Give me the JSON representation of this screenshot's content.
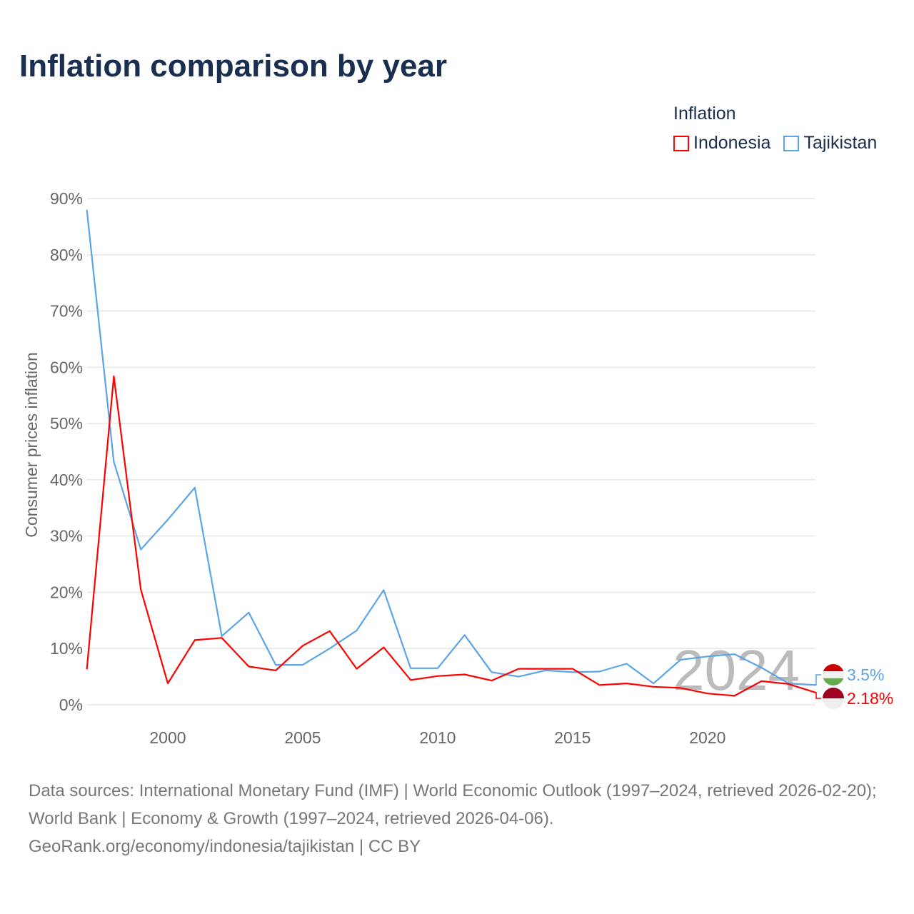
{
  "title": "Inflation comparison by year",
  "legend": {
    "title": "Inflation",
    "items": [
      "Indonesia",
      "Tajikistan"
    ]
  },
  "colors": {
    "Indonesia": "#ff0000",
    "Tajikistan": "#5ba4e8"
  },
  "source_lines": [
    "Data sources: International Monetary Fund (IMF) | World Economic Outlook (1997–2024, retrieved 2026-02-20); World Bank | Economy & Growth (1997–2024, retrieved 2026-04-06).",
    "GeoRank.org/economy/indonesia/tajikistan | CC BY"
  ],
  "chart_data": {
    "type": "line",
    "ylabel": "Consumer prices inflation",
    "xlabel": "",
    "year_watermark": "2024",
    "xlim": [
      1997,
      2024
    ],
    "ylim": [
      0,
      90
    ],
    "xticks": [
      2000,
      2005,
      2010,
      2015,
      2020
    ],
    "yticks": [
      0,
      10,
      20,
      30,
      40,
      50,
      60,
      70,
      80,
      90
    ],
    "ytick_labels": [
      "0%",
      "10%",
      "20%",
      "30%",
      "40%",
      "50%",
      "60%",
      "70%",
      "80%",
      "90%"
    ],
    "x": [
      1997,
      1998,
      1999,
      2000,
      2001,
      2002,
      2003,
      2004,
      2005,
      2006,
      2007,
      2008,
      2009,
      2010,
      2011,
      2012,
      2013,
      2014,
      2015,
      2016,
      2017,
      2018,
      2019,
      2020,
      2021,
      2022,
      2023,
      2024
    ],
    "series": [
      {
        "name": "Indonesia",
        "end_label": "2.18%",
        "values": [
          6.3,
          58.4,
          20.5,
          3.8,
          11.5,
          11.9,
          6.8,
          6.1,
          10.5,
          13.1,
          6.4,
          10.2,
          4.4,
          5.1,
          5.4,
          4.3,
          6.4,
          6.4,
          6.4,
          3.5,
          3.8,
          3.2,
          3.0,
          2.0,
          1.6,
          4.2,
          3.7,
          2.18
        ]
      },
      {
        "name": "Tajikistan",
        "end_label": "3.5%",
        "values": [
          88.0,
          43.2,
          27.6,
          32.9,
          38.6,
          12.2,
          16.4,
          7.1,
          7.1,
          10.0,
          13.2,
          20.4,
          6.5,
          6.5,
          12.4,
          5.8,
          5.0,
          6.1,
          5.8,
          5.9,
          7.3,
          3.8,
          8.0,
          8.6,
          9.0,
          6.6,
          3.8,
          3.5
        ]
      }
    ]
  }
}
